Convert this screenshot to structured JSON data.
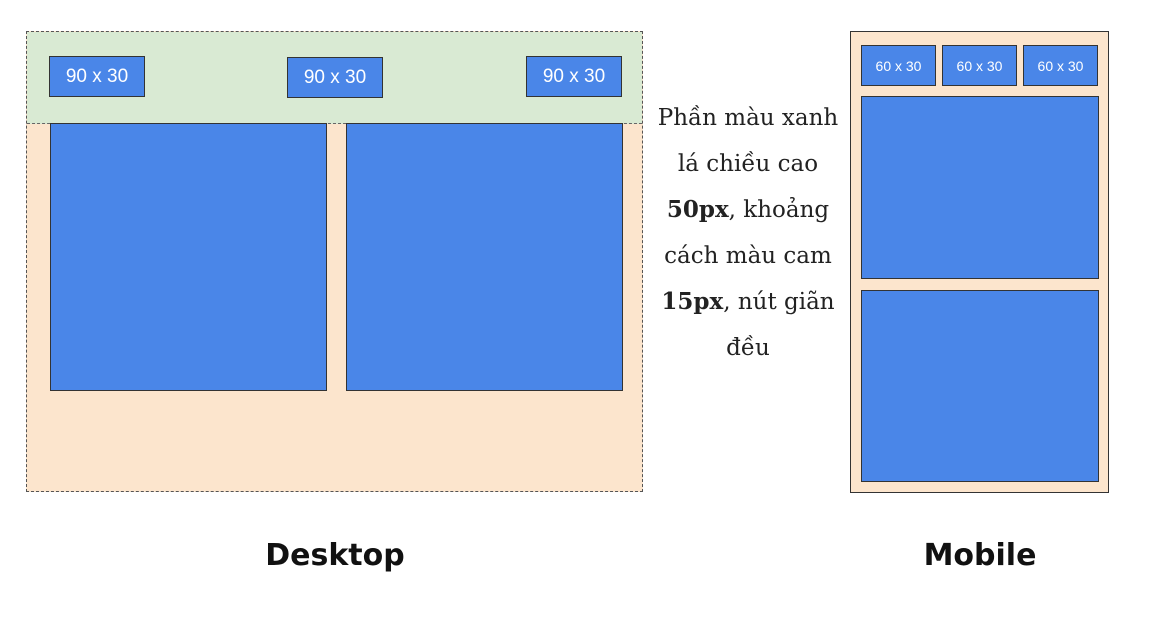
{
  "desktop": {
    "buttons": [
      "90 x 30",
      "90 x 30",
      "90 x 30"
    ],
    "caption": "Desktop"
  },
  "mobile": {
    "buttons": [
      "60 x 30",
      "60 x 30",
      "60 x 30"
    ],
    "caption": "Mobile"
  },
  "description": {
    "part1": "Phần màu xanh lá chiều cao ",
    "bold1": "50px",
    "part2": ", khoảng cách màu cam ",
    "bold2": "15px",
    "part3": ", nút giãn đều"
  },
  "colors": {
    "header_green": "#d9ead3",
    "body_orange": "#fce5cd",
    "box_blue": "#4a86e8",
    "border": "#333333"
  }
}
